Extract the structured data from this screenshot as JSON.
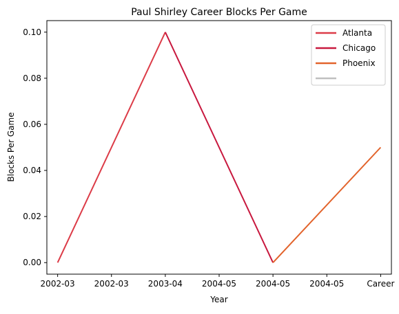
{
  "chart_data": {
    "type": "line",
    "title": "Paul Shirley Career Blocks Per Game",
    "xlabel": "Year",
    "ylabel": "Blocks Per Game",
    "x_tick_labels": [
      "2002-03",
      "2002-03",
      "2003-04",
      "2004-05",
      "2004-05",
      "2004-05",
      "Career"
    ],
    "x_range": [
      -0.2,
      6.2
    ],
    "ylim": [
      -0.005,
      0.105
    ],
    "y_ticks": [
      0.0,
      0.02,
      0.04,
      0.06,
      0.08,
      0.1
    ],
    "y_tick_labels": [
      "0.00",
      "0.02",
      "0.04",
      "0.06",
      "0.08",
      "0.10"
    ],
    "grid": false,
    "legend_position": "top-right",
    "series": [
      {
        "name": "Atlanta",
        "color": "#dc3b47",
        "points": [
          [
            0,
            0.0
          ],
          [
            2,
            0.1
          ]
        ]
      },
      {
        "name": "Chicago",
        "color": "#c8183e",
        "points": [
          [
            2,
            0.1
          ],
          [
            4,
            0.0
          ]
        ]
      },
      {
        "name": "Phoenix",
        "color": "#e2632b",
        "points": [
          [
            4,
            0.0
          ],
          [
            6,
            0.05
          ]
        ]
      },
      {
        "name": "",
        "color": "#bfbfbf",
        "points": []
      }
    ]
  }
}
